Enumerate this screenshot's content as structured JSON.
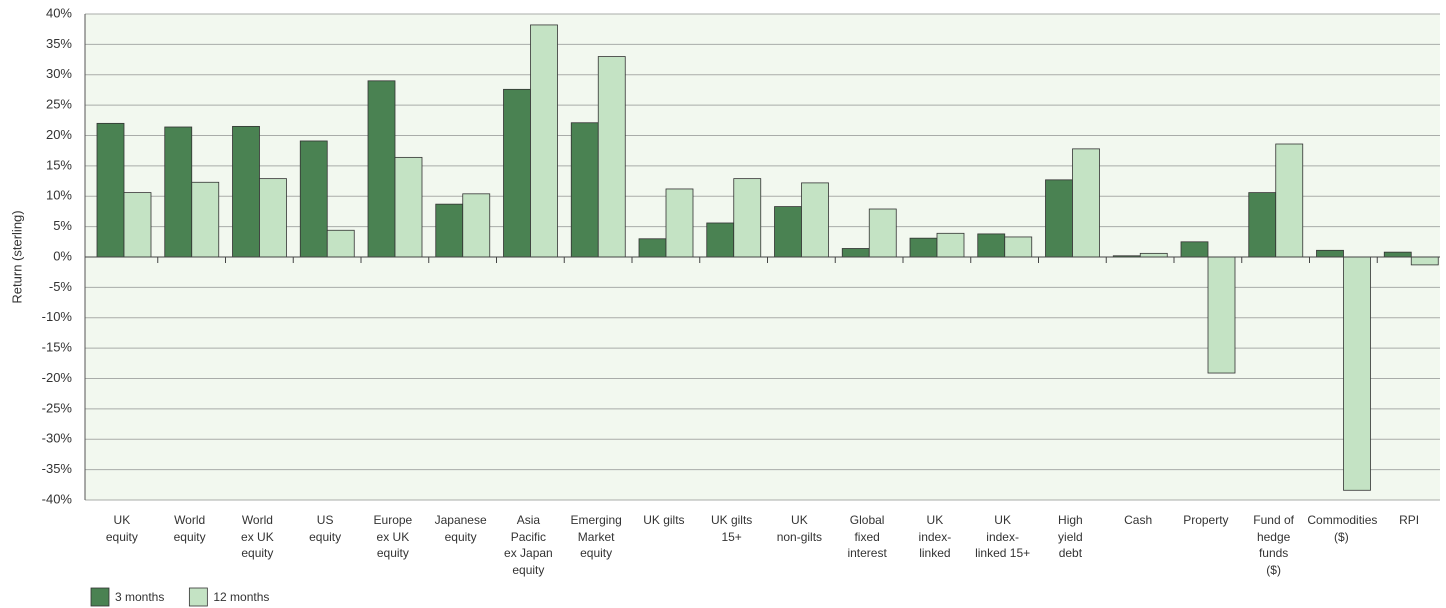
{
  "chart_data": {
    "type": "bar",
    "y_label": "Return (sterling)",
    "categories": [
      "UK\nequity",
      "World\nequity",
      "World\nex UK\nequity",
      "US\nequity",
      "Europe\nex UK\nequity",
      "Japanese\nequity",
      "Asia\nPacific\nex Japan\nequity",
      "Emerging\nMarket\nequity",
      "UK gilts",
      "UK gilts\n15+",
      "UK\nnon-gilts",
      "Global\nfixed\ninterest",
      "UK\nindex-\nlinked",
      "UK\nindex-\nlinked 15+",
      "High\nyield\ndebt",
      "Cash",
      "Property",
      "Fund of\nhedge\nfunds\n($)",
      "Commodities\n($)",
      "RPI"
    ],
    "series": [
      {
        "name": "3 months",
        "color": "#4a8252",
        "values": [
          22.0,
          21.4,
          21.5,
          19.1,
          29.0,
          8.7,
          27.6,
          22.1,
          3.0,
          5.6,
          8.3,
          1.4,
          3.1,
          3.8,
          12.7,
          0.2,
          2.5,
          10.6,
          1.1,
          0.8
        ]
      },
      {
        "name": "12 months",
        "color": "#c4e3c4",
        "values": [
          10.6,
          12.3,
          12.9,
          4.4,
          16.4,
          10.4,
          38.2,
          33.0,
          11.2,
          12.9,
          12.2,
          7.9,
          3.9,
          3.3,
          17.8,
          0.6,
          -19.1,
          18.6,
          -38.4,
          -1.3
        ]
      }
    ],
    "ylim": [
      -40,
      40
    ],
    "yticks": [
      {
        "value": 40,
        "label": "40%"
      },
      {
        "value": 35,
        "label": "35%"
      },
      {
        "value": 30,
        "label": "30%"
      },
      {
        "value": 25,
        "label": "25%"
      },
      {
        "value": 20,
        "label": "20%"
      },
      {
        "value": 15,
        "label": "15%"
      },
      {
        "value": 10,
        "label": "10%"
      },
      {
        "value": 5,
        "label": "5%"
      },
      {
        "value": 0,
        "label": "0%"
      },
      {
        "value": -5,
        "label": "-5%"
      },
      {
        "value": -10,
        "label": "-10%"
      },
      {
        "value": -15,
        "label": "-15%"
      },
      {
        "value": -20,
        "label": "-20%"
      },
      {
        "value": -25,
        "label": "-25%"
      },
      {
        "value": -30,
        "label": "-30%"
      },
      {
        "value": -35,
        "label": "-35%"
      },
      {
        "value": -40,
        "label": "-40%"
      }
    ],
    "grid": true,
    "legend": "bottom-left"
  }
}
